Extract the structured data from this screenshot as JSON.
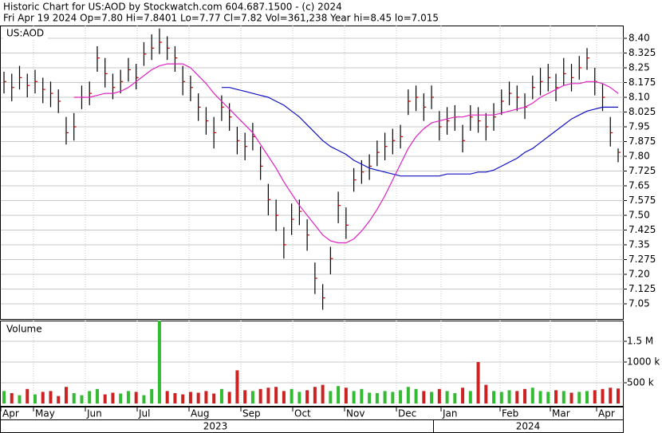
{
  "chart_data": {
    "type": "ohlc",
    "title": "Historic Chart for US:AOD by Stockwatch.com 604.687.1500 - (c) 2024",
    "subtitle": "Fri Apr 19 2024  Op=7.80  Hi=7.8401  Lo=7.77  Cl=7.82  Vol=361,238  Year hi=8.45  lo=7.015",
    "symbol": "US:AOD",
    "volume_label": "Volume",
    "months": [
      "Apr",
      "May",
      "Jun",
      "Jul",
      "Aug",
      "Sep",
      "Oct",
      "Nov",
      "Dec",
      "Jan",
      "Feb",
      "Mar",
      "Apr"
    ],
    "years": [
      "2023",
      "2024"
    ],
    "high": [
      8.23,
      8.22,
      8.26,
      8.22,
      8.24,
      8.2,
      8.18,
      8.14,
      8.0,
      8.02,
      8.16,
      8.18,
      8.36,
      8.3,
      8.22,
      8.24,
      8.3,
      8.27,
      8.38,
      8.42,
      8.45,
      8.41,
      8.36,
      8.26,
      8.21,
      8.12,
      8.05,
      8.0,
      8.11,
      8.07,
      7.95,
      7.92,
      7.97,
      7.85,
      7.66,
      7.58,
      7.44,
      7.56,
      7.58,
      7.48,
      7.26,
      7.15,
      7.34,
      7.62,
      7.54,
      7.74,
      7.78,
      7.81,
      7.88,
      7.92,
      7.94,
      7.96,
      8.14,
      8.16,
      8.12,
      8.16,
      8.03,
      8.05,
      8.06,
      7.96,
      8.06,
      8.05,
      8.02,
      8.07,
      8.14,
      8.18,
      8.16,
      8.12,
      8.21,
      8.25,
      8.27,
      8.22,
      8.3,
      8.27,
      8.31,
      8.35,
      8.25,
      8.17,
      8.0,
      7.84
    ],
    "low": [
      8.12,
      8.08,
      8.14,
      8.1,
      8.12,
      8.07,
      8.05,
      8.02,
      7.86,
      7.88,
      8.04,
      8.06,
      8.23,
      8.15,
      8.09,
      8.12,
      8.18,
      8.14,
      8.26,
      8.29,
      8.32,
      8.29,
      8.23,
      8.11,
      8.08,
      7.98,
      7.91,
      7.84,
      7.98,
      7.93,
      7.81,
      7.78,
      7.83,
      7.68,
      7.5,
      7.42,
      7.28,
      7.4,
      7.45,
      7.32,
      7.1,
      7.02,
      7.2,
      7.46,
      7.38,
      7.62,
      7.66,
      7.68,
      7.75,
      7.78,
      7.81,
      7.84,
      8.01,
      8.03,
      7.98,
      8.04,
      7.88,
      7.91,
      7.93,
      7.82,
      7.93,
      7.92,
      7.88,
      7.93,
      8.01,
      8.06,
      8.03,
      7.99,
      8.09,
      8.11,
      8.13,
      8.08,
      8.16,
      8.13,
      8.19,
      8.24,
      8.11,
      8.03,
      7.85,
      7.77
    ],
    "close": [
      8.18,
      8.15,
      8.2,
      8.16,
      8.18,
      8.14,
      8.12,
      8.08,
      7.92,
      7.95,
      8.1,
      8.12,
      8.3,
      8.22,
      8.15,
      8.18,
      8.24,
      8.2,
      8.32,
      8.35,
      8.38,
      8.35,
      8.3,
      8.18,
      8.15,
      8.05,
      7.98,
      7.92,
      8.05,
      8.0,
      7.88,
      7.85,
      7.9,
      7.75,
      7.58,
      7.5,
      7.35,
      7.48,
      7.52,
      7.4,
      7.18,
      7.08,
      7.28,
      7.55,
      7.45,
      7.68,
      7.72,
      7.75,
      7.82,
      7.85,
      7.88,
      7.9,
      8.08,
      8.1,
      8.05,
      8.1,
      7.95,
      7.98,
      8.0,
      7.88,
      8.0,
      7.98,
      7.95,
      8.0,
      8.08,
      8.12,
      8.1,
      8.05,
      8.15,
      8.18,
      8.2,
      8.15,
      8.22,
      8.2,
      8.25,
      8.3,
      8.18,
      8.1,
      7.92,
      7.82
    ],
    "ma_short": [
      null,
      null,
      null,
      null,
      null,
      null,
      null,
      null,
      null,
      8.1,
      8.1,
      8.1,
      8.11,
      8.12,
      8.12,
      8.13,
      8.15,
      8.18,
      8.21,
      8.24,
      8.26,
      8.27,
      8.27,
      8.27,
      8.25,
      8.21,
      8.17,
      8.12,
      8.08,
      8.04,
      8.0,
      7.96,
      7.92,
      7.86,
      7.8,
      7.74,
      7.67,
      7.61,
      7.55,
      7.5,
      7.45,
      7.4,
      7.37,
      7.36,
      7.36,
      7.38,
      7.42,
      7.47,
      7.53,
      7.6,
      7.68,
      7.76,
      7.84,
      7.9,
      7.94,
      7.97,
      7.98,
      7.99,
      8.0,
      8.0,
      8.01,
      8.01,
      8.01,
      8.01,
      8.02,
      8.03,
      8.04,
      8.05,
      8.07,
      8.1,
      8.12,
      8.14,
      8.16,
      8.17,
      8.17,
      8.18,
      8.18,
      8.17,
      8.15,
      8.12
    ],
    "ma_long": [
      null,
      null,
      null,
      null,
      null,
      null,
      null,
      null,
      null,
      null,
      null,
      null,
      null,
      null,
      null,
      null,
      null,
      null,
      null,
      null,
      null,
      null,
      null,
      null,
      null,
      null,
      null,
      null,
      8.15,
      8.15,
      8.14,
      8.13,
      8.12,
      8.11,
      8.1,
      8.08,
      8.06,
      8.03,
      8.0,
      7.96,
      7.92,
      7.88,
      7.85,
      7.83,
      7.81,
      7.78,
      7.76,
      7.74,
      7.73,
      7.72,
      7.71,
      7.7,
      7.7,
      7.7,
      7.7,
      7.7,
      7.7,
      7.71,
      7.71,
      7.71,
      7.71,
      7.72,
      7.72,
      7.73,
      7.75,
      7.77,
      7.79,
      7.82,
      7.84,
      7.87,
      7.9,
      7.93,
      7.96,
      7.99,
      8.01,
      8.03,
      8.04,
      8.05,
      8.05,
      8.05
    ],
    "volume": [
      300000,
      250000,
      200000,
      350000,
      220000,
      280000,
      300000,
      180000,
      400000,
      250000,
      200000,
      300000,
      350000,
      220000,
      260000,
      240000,
      300000,
      280000,
      200000,
      350000,
      2000000,
      300000,
      250000,
      220000,
      280000,
      260000,
      300000,
      240000,
      350000,
      280000,
      800000,
      320000,
      300000,
      350000,
      380000,
      400000,
      300000,
      350000,
      280000,
      320000,
      400000,
      450000,
      300000,
      420000,
      380000,
      300000,
      350000,
      260000,
      250000,
      300000,
      280000,
      320000,
      400000,
      350000,
      300000,
      280000,
      350000,
      300000,
      250000,
      380000,
      300000,
      1000000,
      450000,
      300000,
      280000,
      320000,
      300000,
      350000,
      380000,
      300000,
      280000,
      320000,
      300000,
      260000,
      280000,
      300000,
      320000,
      350000,
      380000,
      361238
    ],
    "ylim": [
      6.973,
      8.465
    ],
    "yticks": [
      7.05,
      7.125,
      {
        "value": 7.2,
        "label": "7.20"
      },
      7.275,
      7.35,
      7.425,
      {
        "value": 7.5,
        "label": "7.50"
      },
      7.575,
      7.65,
      7.725,
      {
        "value": 7.8,
        "label": "7.80"
      },
      7.875,
      7.95,
      8.025,
      {
        "value": 8.1,
        "label": "8.10"
      },
      8.175,
      8.25,
      8.325,
      {
        "value": 8.4,
        "label": "8.40"
      }
    ],
    "vlim": [
      0,
      2000000
    ],
    "vticks": [
      {
        "value": 500000,
        "label": "500 k"
      },
      {
        "value": 1000000,
        "label": "1000 k"
      },
      {
        "value": 1500000,
        "label": "1.5 M"
      }
    ],
    "grid": true,
    "colors": {
      "bar": "#000000",
      "close_tick": "#cc0000",
      "ma_short": "#e020c0",
      "ma_long": "#1010c0",
      "volume_up": "#33bb33",
      "volume_down": "#cc2222",
      "grid": "#c8c8c8"
    }
  }
}
